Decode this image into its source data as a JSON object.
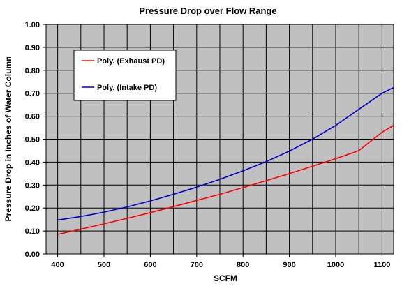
{
  "chart_data": {
    "type": "line",
    "title": "Pressure Drop over Flow Range",
    "xlabel": "SCFM",
    "ylabel": "Pressure Drop in Inches of Water Column",
    "xlim": [
      375,
      1125
    ],
    "ylim": [
      0,
      1.0
    ],
    "x_ticks": [
      400,
      500,
      600,
      700,
      800,
      900,
      1000,
      1100
    ],
    "x_tick_labels": [
      "400",
      "500",
      "600",
      "700",
      "800",
      "900",
      "1000",
      "1100"
    ],
    "x_grid": [
      400,
      450,
      500,
      550,
      600,
      650,
      700,
      750,
      800,
      850,
      900,
      950,
      1000,
      1050,
      1100
    ],
    "y_ticks": [
      0,
      0.1,
      0.2,
      0.3,
      0.4,
      0.5,
      0.6,
      0.7,
      0.8,
      0.9,
      1.0
    ],
    "y_tick_labels": [
      "0.00",
      "0.10",
      "0.20",
      "0.30",
      "0.40",
      "0.50",
      "0.60",
      "0.70",
      "0.80",
      "0.90",
      "1.00"
    ],
    "grid": true,
    "legend_position": "top-left",
    "plot_background": "#c0c0c0",
    "grid_color": "#000000",
    "series": [
      {
        "name": "Poly. (Exhaust PD)",
        "color": "#ff0000",
        "x": [
          400,
          450,
          500,
          550,
          600,
          650,
          700,
          750,
          800,
          850,
          900,
          950,
          1000,
          1050,
          1100,
          1125
        ],
        "values": [
          0.085,
          0.108,
          0.131,
          0.155,
          0.18,
          0.206,
          0.233,
          0.26,
          0.289,
          0.319,
          0.35,
          0.382,
          0.415,
          0.45,
          0.53,
          0.56
        ]
      },
      {
        "name": "Poly. (Intake PD)",
        "color": "#0000cc",
        "x": [
          400,
          450,
          500,
          550,
          600,
          650,
          700,
          750,
          800,
          850,
          900,
          950,
          1000,
          1050,
          1100,
          1125
        ],
        "values": [
          0.148,
          0.163,
          0.182,
          0.205,
          0.231,
          0.26,
          0.291,
          0.325,
          0.362,
          0.402,
          0.448,
          0.5,
          0.56,
          0.63,
          0.7,
          0.725
        ]
      }
    ]
  }
}
